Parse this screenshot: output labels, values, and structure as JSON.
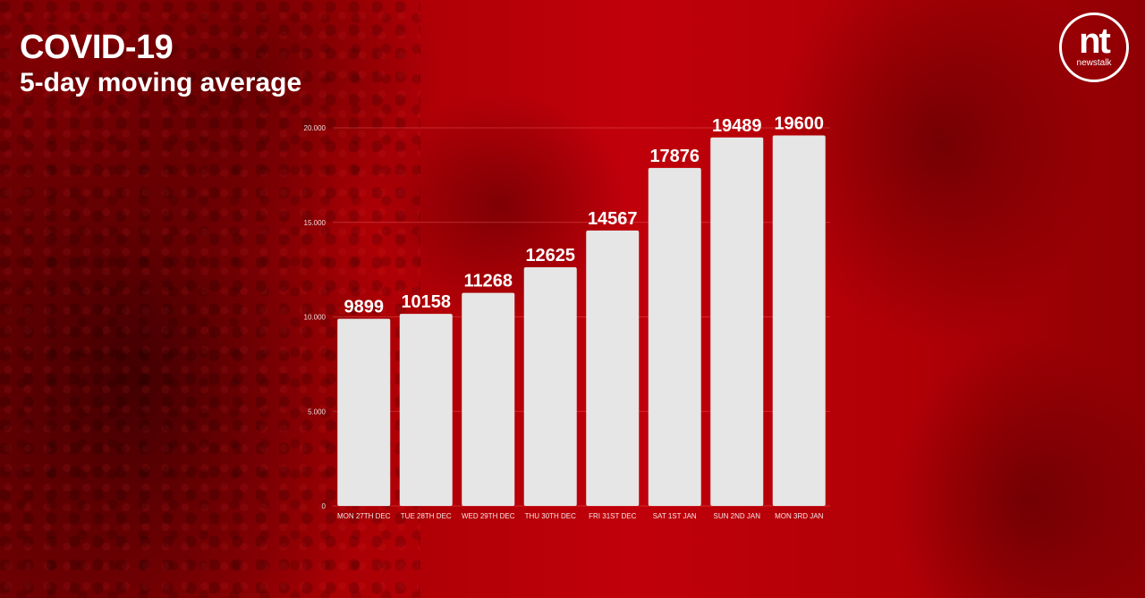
{
  "title": "COVID-19",
  "subtitle": "5-day moving average",
  "logo": {
    "mark": "nt",
    "wordmark": "newstalk"
  },
  "colors": {
    "background": "#b10005",
    "bar": "#e6e6e6",
    "text": "#ffffff"
  },
  "chart_data": {
    "type": "bar",
    "title": "COVID-19",
    "subtitle": "5-day moving average",
    "categories": [
      "MON 27TH DEC",
      "TUE 28TH DEC",
      "WED 29TH DEC",
      "THU 30TH DEC",
      "FRI 31ST DEC",
      "SAT 1ST JAN",
      "SUN 2ND JAN",
      "MON 3RD JAN"
    ],
    "values": [
      9899,
      10158,
      11268,
      12625,
      14567,
      17876,
      19489,
      19600
    ],
    "data_labels": [
      "9899",
      "10158",
      "11268",
      "12625",
      "14567",
      "17876",
      "19489",
      "19600"
    ],
    "y_ticks": [
      0,
      5000,
      10000,
      15000,
      20000
    ],
    "y_tick_labels": [
      "0",
      "5.000",
      "10.000",
      "15.000",
      "20.000"
    ],
    "ylim": [
      0,
      20000
    ],
    "xlabel": "",
    "ylabel": "",
    "grid": true,
    "legend": "none"
  }
}
